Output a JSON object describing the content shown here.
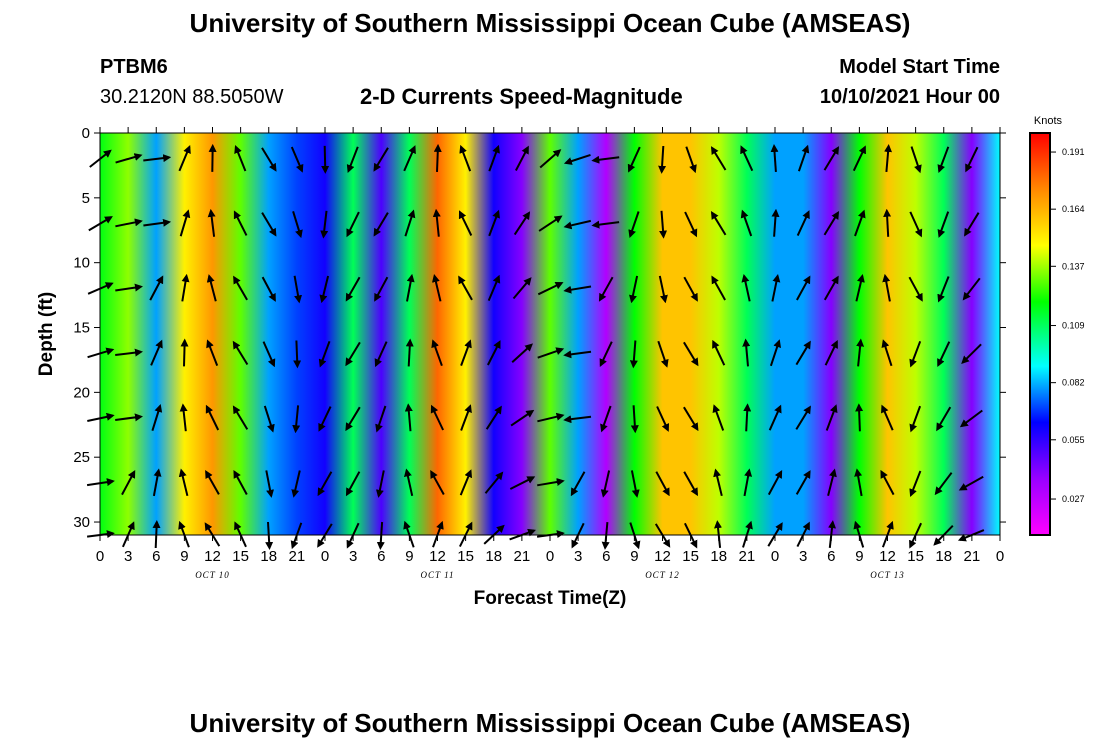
{
  "header": {
    "title": "University of Southern Mississippi Ocean Cube (AMSEAS)",
    "station": "PTBM6",
    "coordinates": "30.2120N  88.5050W",
    "subtitle": "2-D Currents Speed-Magnitude",
    "model_start_label": "Model Start Time",
    "model_start_value": "10/10/2021 Hour 00"
  },
  "footer": {
    "title": "University of Southern Mississippi Ocean Cube (AMSEAS)"
  },
  "chart_data": {
    "type": "heatmap",
    "title": "2-D Currents Speed-Magnitude",
    "xlabel": "Forecast Time(Z)",
    "ylabel": "Depth (ft)",
    "x_tick_labels": [
      "0",
      "3",
      "6",
      "9",
      "12",
      "15",
      "18",
      "21",
      "0",
      "3",
      "6",
      "9",
      "12",
      "15",
      "18",
      "21",
      "0",
      "3",
      "6",
      "9",
      "12",
      "15",
      "18",
      "21",
      "0",
      "3",
      "6",
      "9",
      "12",
      "15",
      "18",
      "21",
      "0"
    ],
    "date_labels": [
      "OCT 10",
      "OCT 11",
      "OCT 12",
      "OCT 13"
    ],
    "xlim_hours": [
      0,
      96
    ],
    "ylim_ft": [
      0,
      31
    ],
    "y_ticks": [
      0,
      5,
      10,
      15,
      20,
      25,
      30
    ],
    "y_inverted": true,
    "vector_depths_ft": [
      2,
      7,
      12,
      17,
      22,
      27,
      31
    ],
    "colorbar": {
      "units": "Knots",
      "ticks": [
        0.191,
        0.164,
        0.137,
        0.109,
        0.082,
        0.055,
        0.027
      ],
      "range": [
        0.01,
        0.2
      ]
    },
    "speed_bands": [
      {
        "x_hours": [
          0,
          3,
          6,
          9,
          12,
          15,
          18,
          21,
          24,
          27,
          30,
          33,
          36,
          39,
          42,
          45,
          48,
          51,
          54,
          57,
          60,
          63,
          66,
          69,
          72,
          75,
          78,
          81,
          84,
          87,
          90,
          93,
          96
        ]
      },
      {
        "speed_knots": [
          0.118,
          0.135,
          0.08,
          0.15,
          0.17,
          0.13,
          0.08,
          0.07,
          0.06,
          0.11,
          0.05,
          0.11,
          0.18,
          0.15,
          0.06,
          0.04,
          0.13,
          0.08,
          0.03,
          0.12,
          0.16,
          0.16,
          0.14,
          0.11,
          0.08,
          0.08,
          0.04,
          0.12,
          0.16,
          0.14,
          0.11,
          0.04,
          0.09
        ]
      }
    ]
  }
}
